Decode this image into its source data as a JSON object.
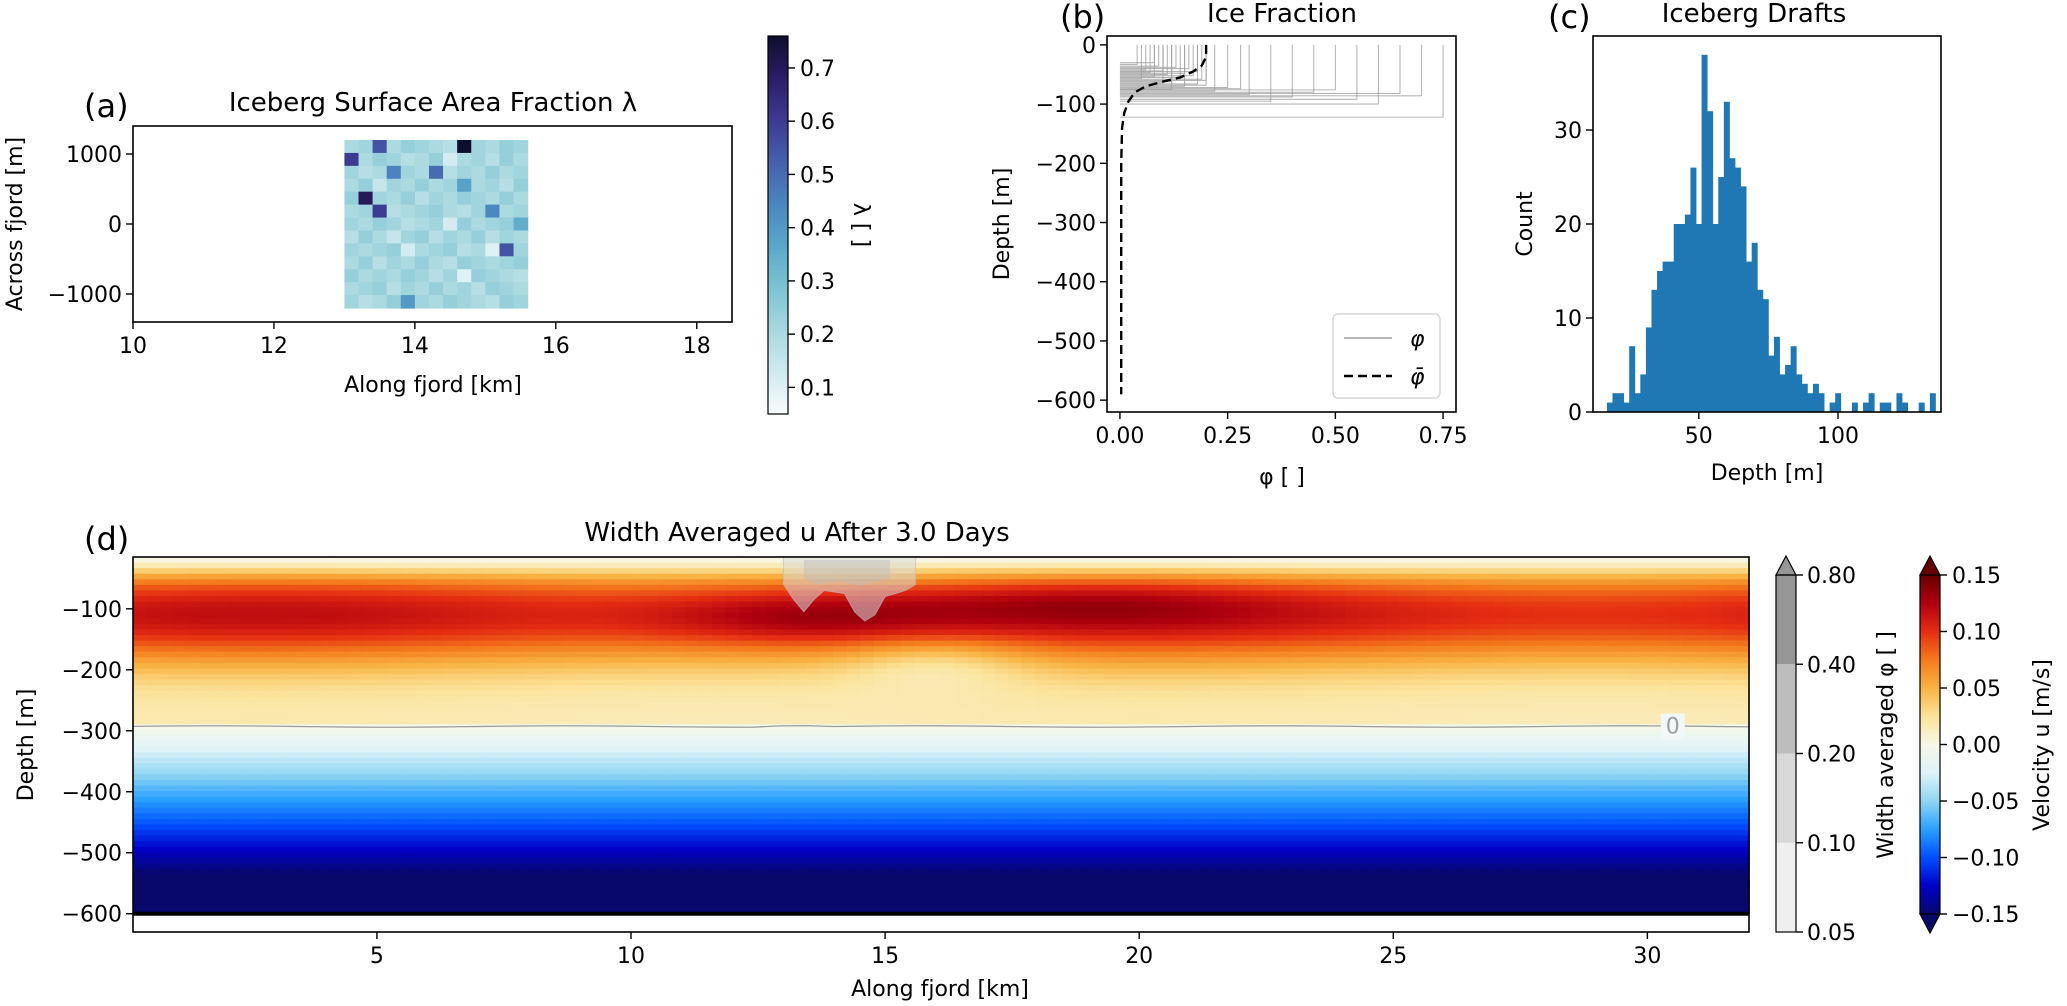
{
  "chart_data": [
    {
      "panel_label": "(a)",
      "type": "heatmap",
      "title": "Iceberg Surface Area Fraction λ",
      "xlabel": "Along fjord [km]",
      "ylabel": "Across fjord [m]",
      "xlim": [
        10,
        18.5
      ],
      "ylim": [
        -1400,
        1400
      ],
      "xticks": [
        "10",
        "12",
        "14",
        "16",
        "18"
      ],
      "yticks": [
        "1000",
        "0",
        "−1000"
      ],
      "grid_extent": {
        "x": [
          13,
          15.6
        ],
        "y": [
          -1200,
          1200
        ]
      },
      "colorbar": {
        "label": "λ [ ]",
        "range": [
          0.05,
          0.76
        ],
        "ticks": [
          "0.1",
          "0.2",
          "0.3",
          "0.4",
          "0.5",
          "0.6",
          "0.7"
        ],
        "colormap": [
          "#f7fcfd",
          "#cfeaf0",
          "#a8d8df",
          "#7cc3d2",
          "#5aa8c9",
          "#4b86bf",
          "#4660ad",
          "#3c3a91",
          "#2c1d66",
          "#0e0e2e"
        ]
      },
      "values": [
        [
          0.2,
          0.22,
          0.55,
          0.2,
          0.24,
          0.22,
          0.2,
          0.18,
          0.76,
          0.22,
          0.2,
          0.24,
          0.22
        ],
        [
          0.6,
          0.2,
          0.24,
          0.22,
          0.18,
          0.2,
          0.24,
          0.12,
          0.2,
          0.22,
          0.18,
          0.24,
          0.2
        ],
        [
          0.22,
          0.18,
          0.2,
          0.45,
          0.22,
          0.2,
          0.5,
          0.18,
          0.22,
          0.2,
          0.24,
          0.2,
          0.22
        ],
        [
          0.2,
          0.24,
          0.15,
          0.22,
          0.2,
          0.24,
          0.2,
          0.22,
          0.38,
          0.2,
          0.22,
          0.18,
          0.24
        ],
        [
          0.24,
          0.7,
          0.22,
          0.2,
          0.24,
          0.18,
          0.22,
          0.2,
          0.24,
          0.22,
          0.2,
          0.24,
          0.2
        ],
        [
          0.2,
          0.22,
          0.6,
          0.18,
          0.2,
          0.22,
          0.24,
          0.2,
          0.18,
          0.22,
          0.44,
          0.2,
          0.22
        ],
        [
          0.22,
          0.2,
          0.24,
          0.22,
          0.18,
          0.2,
          0.22,
          0.12,
          0.24,
          0.2,
          0.22,
          0.24,
          0.35
        ],
        [
          0.18,
          0.24,
          0.2,
          0.15,
          0.22,
          0.24,
          0.18,
          0.22,
          0.2,
          0.24,
          0.18,
          0.22,
          0.2
        ],
        [
          0.22,
          0.2,
          0.22,
          0.24,
          0.12,
          0.2,
          0.22,
          0.24,
          0.18,
          0.2,
          0.1,
          0.55,
          0.22
        ],
        [
          0.2,
          0.24,
          0.18,
          0.22,
          0.2,
          0.24,
          0.2,
          0.18,
          0.24,
          0.22,
          0.2,
          0.22,
          0.24
        ],
        [
          0.24,
          0.2,
          0.22,
          0.2,
          0.24,
          0.22,
          0.18,
          0.22,
          0.1,
          0.24,
          0.22,
          0.2,
          0.18
        ],
        [
          0.2,
          0.22,
          0.24,
          0.18,
          0.22,
          0.2,
          0.24,
          0.2,
          0.22,
          0.18,
          0.24,
          0.22,
          0.2
        ],
        [
          0.22,
          0.18,
          0.2,
          0.24,
          0.4,
          0.22,
          0.2,
          0.24,
          0.22,
          0.2,
          0.18,
          0.24,
          0.22
        ]
      ]
    },
    {
      "panel_label": "(b)",
      "type": "line",
      "title": "Ice Fraction",
      "xlabel": "φ [ ]",
      "ylabel": "Depth [m]",
      "xlim": [
        -0.03,
        0.78
      ],
      "ylim": [
        -620,
        15
      ],
      "xticks": [
        "0.00",
        "0.25",
        "0.50",
        "0.75"
      ],
      "yticks": [
        "0",
        "−100",
        "−200",
        "−300",
        "−400",
        "−500",
        "−600"
      ],
      "legend": {
        "placement": "lower-right",
        "entries": [
          "φ",
          "φ̄"
        ]
      },
      "individual_profiles_color": "#9e9e9e",
      "mean_profile": {
        "x": [
          0.2,
          0.2,
          0.19,
          0.17,
          0.14,
          0.1,
          0.06,
          0.035,
          0.02,
          0.01,
          0.005,
          0.003,
          0.003
        ],
        "y": [
          0,
          -20,
          -35,
          -45,
          -55,
          -62,
          -70,
          -80,
          -95,
          -115,
          -140,
          -200,
          -590
        ]
      },
      "profiles": [
        {
          "phi": 0.2,
          "draft": 60
        },
        {
          "phi": 0.19,
          "draft": 58
        },
        {
          "phi": 0.18,
          "draft": 45
        },
        {
          "phi": 0.17,
          "draft": 52
        },
        {
          "phi": 0.16,
          "draft": 40
        },
        {
          "phi": 0.15,
          "draft": 48
        },
        {
          "phi": 0.14,
          "draft": 55
        },
        {
          "phi": 0.13,
          "draft": 38
        },
        {
          "phi": 0.12,
          "draft": 62
        },
        {
          "phi": 0.11,
          "draft": 50
        },
        {
          "phi": 0.1,
          "draft": 44
        },
        {
          "phi": 0.09,
          "draft": 36
        },
        {
          "phi": 0.08,
          "draft": 54
        },
        {
          "phi": 0.07,
          "draft": 47
        },
        {
          "phi": 0.06,
          "draft": 42
        },
        {
          "phi": 0.05,
          "draft": 57
        },
        {
          "phi": 0.04,
          "draft": 33
        },
        {
          "phi": 0.18,
          "draft": 66
        },
        {
          "phi": 0.15,
          "draft": 70
        },
        {
          "phi": 0.12,
          "draft": 75
        },
        {
          "phi": 0.22,
          "draft": 78
        },
        {
          "phi": 0.25,
          "draft": 72
        },
        {
          "phi": 0.3,
          "draft": 84
        },
        {
          "phi": 0.35,
          "draft": 95
        },
        {
          "phi": 0.4,
          "draft": 88
        },
        {
          "phi": 0.45,
          "draft": 80
        },
        {
          "phi": 0.5,
          "draft": 76
        },
        {
          "phi": 0.55,
          "draft": 92
        },
        {
          "phi": 0.6,
          "draft": 100
        },
        {
          "phi": 0.65,
          "draft": 82
        },
        {
          "phi": 0.7,
          "draft": 86
        },
        {
          "phi": 0.75,
          "draft": 122
        },
        {
          "phi": 0.2,
          "draft": 68
        },
        {
          "phi": 0.1,
          "draft": 64
        },
        {
          "phi": 0.08,
          "draft": 30
        },
        {
          "phi": 0.28,
          "draft": 74
        }
      ]
    },
    {
      "panel_label": "(c)",
      "type": "bar",
      "title": "Iceberg Drafts",
      "xlabel": "Depth [m]",
      "ylabel": "Count",
      "xlim": [
        12,
        137
      ],
      "ylim": [
        0,
        40
      ],
      "xticks": [
        "50",
        "100"
      ],
      "yticks": [
        "0",
        "10",
        "20",
        "30"
      ],
      "color": "#1f77b4",
      "bin_start": 17,
      "bin_width": 2,
      "values": [
        1,
        2,
        2,
        1,
        7,
        2,
        4,
        9,
        13,
        15,
        16,
        16,
        20,
        20,
        21,
        26,
        20,
        38,
        32,
        20,
        25,
        33,
        27,
        26,
        24,
        16,
        18,
        13,
        12,
        6,
        8,
        4,
        5,
        7,
        4,
        3,
        2,
        3,
        2,
        0,
        1,
        2,
        0,
        0,
        1,
        0,
        1,
        2,
        0,
        1,
        1,
        0,
        2,
        1,
        0,
        0,
        1,
        0,
        2
      ]
    },
    {
      "panel_label": "(d)",
      "type": "heatmap",
      "title": "Width Averaged u After 3.0 Days",
      "xlabel": "Along fjord [km]",
      "ylabel": "Depth [m]",
      "xlim": [
        0.2,
        32
      ],
      "ylim": [
        -630,
        -15
      ],
      "xticks": [
        "5",
        "10",
        "15",
        "20",
        "25",
        "30"
      ],
      "yticks": [
        "−100",
        "−200",
        "−300",
        "−400",
        "−500",
        "−600"
      ],
      "contour_label": "0",
      "contour_depth": -293,
      "bottom_depth": -600,
      "ice_colorbar": {
        "label": "Width averaged φ [ ]",
        "levels": [
          "0.05",
          "0.10",
          "0.20",
          "0.40",
          "0.80"
        ],
        "colors": [
          "#ffffff",
          "#efefef",
          "#d9d9d9",
          "#bdbdbd",
          "#969696"
        ]
      },
      "velocity_colorbar": {
        "label": "Velocity u [m/s]",
        "range": [
          -0.15,
          0.15
        ],
        "ticks": [
          "0.15",
          "0.10",
          "0.05",
          "0.00",
          "−0.05",
          "−0.10",
          "−0.15"
        ],
        "colormap": [
          "#08086b",
          "#0000c8",
          "#0050ff",
          "#2aa0ff",
          "#8fd6f2",
          "#dff3f8",
          "#f7f7e8",
          "#fbe39a",
          "#f8b342",
          "#f47a1c",
          "#e52d12",
          "#b0000f",
          "#670000"
        ]
      }
    }
  ]
}
